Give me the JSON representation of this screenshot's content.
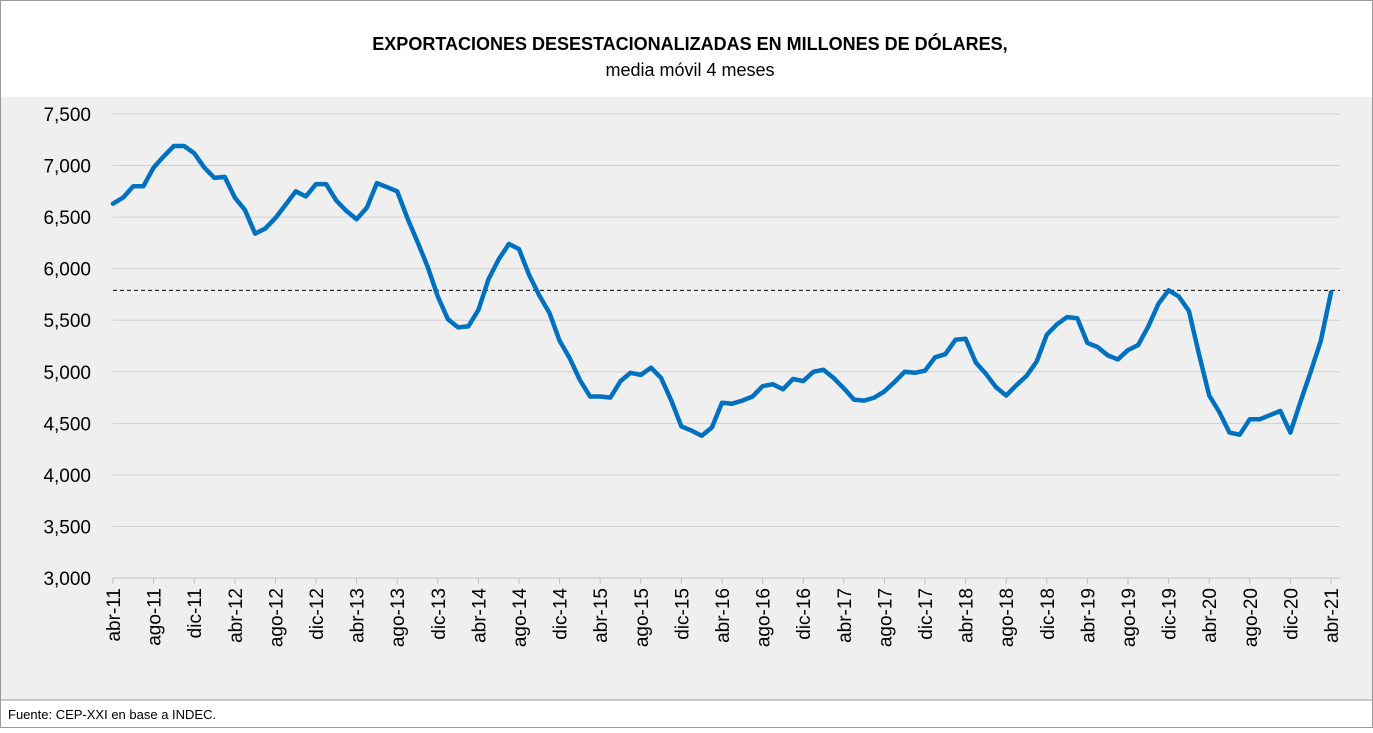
{
  "chart_data": {
    "type": "line",
    "title": "EXPORTACIONES DESESTACIONALIZADAS EN MILLONES DE DÓLARES,",
    "subtitle": "media móvil 4 meses",
    "source": "Fuente: CEP-XXI en base a INDEC.",
    "categories": [
      "abr-11",
      null,
      null,
      null,
      "ago-11",
      null,
      null,
      null,
      "dic-11",
      null,
      null,
      null,
      "abr-12",
      null,
      null,
      null,
      "ago-12",
      null,
      null,
      null,
      "dic-12",
      null,
      null,
      null,
      "abr-13",
      null,
      null,
      null,
      "ago-13",
      null,
      null,
      null,
      "dic-13",
      null,
      null,
      null,
      "abr-14",
      null,
      null,
      null,
      "ago-14",
      null,
      null,
      null,
      "dic-14",
      null,
      null,
      null,
      "abr-15",
      null,
      null,
      null,
      "ago-15",
      null,
      null,
      null,
      "dic-15",
      null,
      null,
      null,
      "abr-16",
      null,
      null,
      null,
      "ago-16",
      null,
      null,
      null,
      "dic-16",
      null,
      null,
      null,
      "abr-17",
      null,
      null,
      null,
      "ago-17",
      null,
      null,
      null,
      "dic-17",
      null,
      null,
      null,
      "abr-18",
      null,
      null,
      null,
      "ago-18",
      null,
      null,
      null,
      "dic-18",
      null,
      null,
      null,
      "abr-19",
      null,
      null,
      null,
      "ago-19",
      null,
      null,
      null,
      "dic-19",
      null,
      null,
      null,
      "abr-20",
      null,
      null,
      null,
      "ago-20",
      null,
      null,
      null,
      "dic-20",
      null,
      null,
      null,
      "abr-21"
    ],
    "series": [
      {
        "color": "#0070c0",
        "values": [
          6630,
          6690,
          6800,
          6800,
          6980,
          7090,
          7190,
          7190,
          7120,
          6980,
          6880,
          6890,
          6690,
          6570,
          6340,
          6390,
          6490,
          6620,
          6750,
          6700,
          6820,
          6820,
          6660,
          6560,
          6480,
          6590,
          6830,
          6790,
          6750,
          6490,
          6260,
          6020,
          5730,
          5510,
          5430,
          5440,
          5600,
          5900,
          6090,
          6240,
          6190,
          5940,
          5740,
          5570,
          5300,
          5130,
          4920,
          4760,
          4760,
          4750,
          4910,
          4990,
          4970,
          5040,
          4940,
          4720,
          4470,
          4430,
          4380,
          4460,
          4700,
          4690,
          4720,
          4760,
          4860,
          4880,
          4830,
          4930,
          4910,
          5000,
          5020,
          4940,
          4840,
          4730,
          4720,
          4750,
          4810,
          4900,
          5000,
          4990,
          5010,
          5140,
          5170,
          5310,
          5320,
          5090,
          4980,
          4850,
          4770,
          4870,
          4960,
          5100,
          5360,
          5460,
          5530,
          5520,
          5280,
          5240,
          5160,
          5120,
          5210,
          5260,
          5440,
          5660,
          5790,
          5730,
          5590,
          5170,
          4770,
          4610,
          4410,
          4390,
          4540,
          4540,
          4580,
          4620,
          4410,
          4710,
          5000,
          5300,
          5770
        ]
      }
    ],
    "reference_line": 5790,
    "ylim": [
      3000,
      7500
    ],
    "yticks": [
      {
        "value": 3000,
        "label": "3,000"
      },
      {
        "value": 3500,
        "label": "3,500"
      },
      {
        "value": 4000,
        "label": "4,000"
      },
      {
        "value": 4500,
        "label": "4,500"
      },
      {
        "value": 5000,
        "label": "5,000"
      },
      {
        "value": 5500,
        "label": "5,500"
      },
      {
        "value": 6000,
        "label": "6,000"
      },
      {
        "value": 6500,
        "label": "6,500"
      },
      {
        "value": 7000,
        "label": "7,000"
      },
      {
        "value": 7500,
        "label": "7,500"
      }
    ],
    "grid": true
  }
}
